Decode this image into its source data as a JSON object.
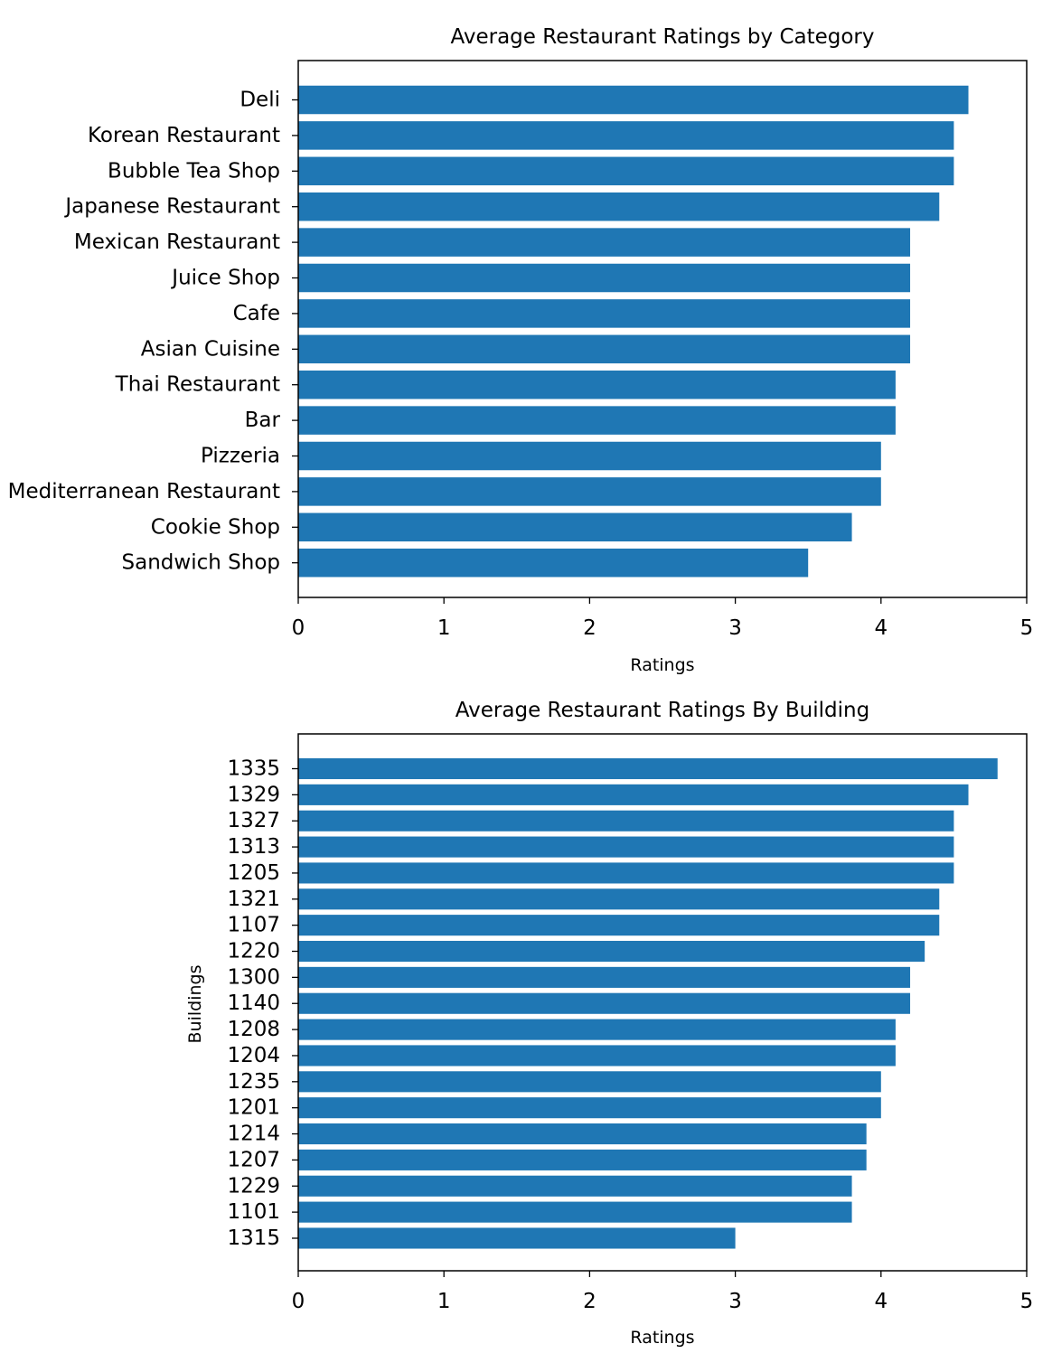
{
  "chart_data": [
    {
      "type": "bar",
      "orientation": "horizontal",
      "title": "Average Restaurant Ratings by Category",
      "xlabel": "Ratings",
      "ylabel": "",
      "xlim": [
        0,
        5
      ],
      "xticks": [
        "0",
        "1",
        "2",
        "3",
        "4",
        "5"
      ],
      "categories": [
        "Deli",
        "Korean Restaurant",
        "Bubble Tea Shop",
        "Japanese Restaurant",
        "Mexican Restaurant",
        "Juice Shop",
        "Cafe",
        "Asian Cuisine ",
        "Thai Restaurant",
        "Bar",
        "Pizzeria",
        "Mediterranean Restaurant",
        "Cookie Shop",
        "Sandwich Shop"
      ],
      "values": [
        4.6,
        4.5,
        4.5,
        4.4,
        4.2,
        4.2,
        4.2,
        4.2,
        4.1,
        4.1,
        4.0,
        4.0,
        3.8,
        3.5
      ],
      "bar_color": "#1f77b4",
      "grid": false
    },
    {
      "type": "bar",
      "orientation": "horizontal",
      "title": "Average Restaurant Ratings By Building",
      "xlabel": "Ratings",
      "ylabel": "Buildings",
      "xlim": [
        0,
        5
      ],
      "xticks": [
        "0",
        "1",
        "2",
        "3",
        "4",
        "5"
      ],
      "categories": [
        "1335",
        "1329",
        "1327",
        "1313",
        "1205",
        "1321",
        "1107",
        "1220",
        "1300",
        "1140",
        "1208",
        "1204",
        "1235",
        "1201",
        "1214",
        "1207",
        "1229",
        "1101",
        "1315"
      ],
      "values": [
        4.8,
        4.6,
        4.5,
        4.5,
        4.5,
        4.4,
        4.4,
        4.3,
        4.2,
        4.2,
        4.1,
        4.1,
        4.0,
        4.0,
        3.9,
        3.9,
        3.8,
        3.8,
        3.0
      ],
      "bar_color": "#1f77b4",
      "grid": false
    }
  ]
}
